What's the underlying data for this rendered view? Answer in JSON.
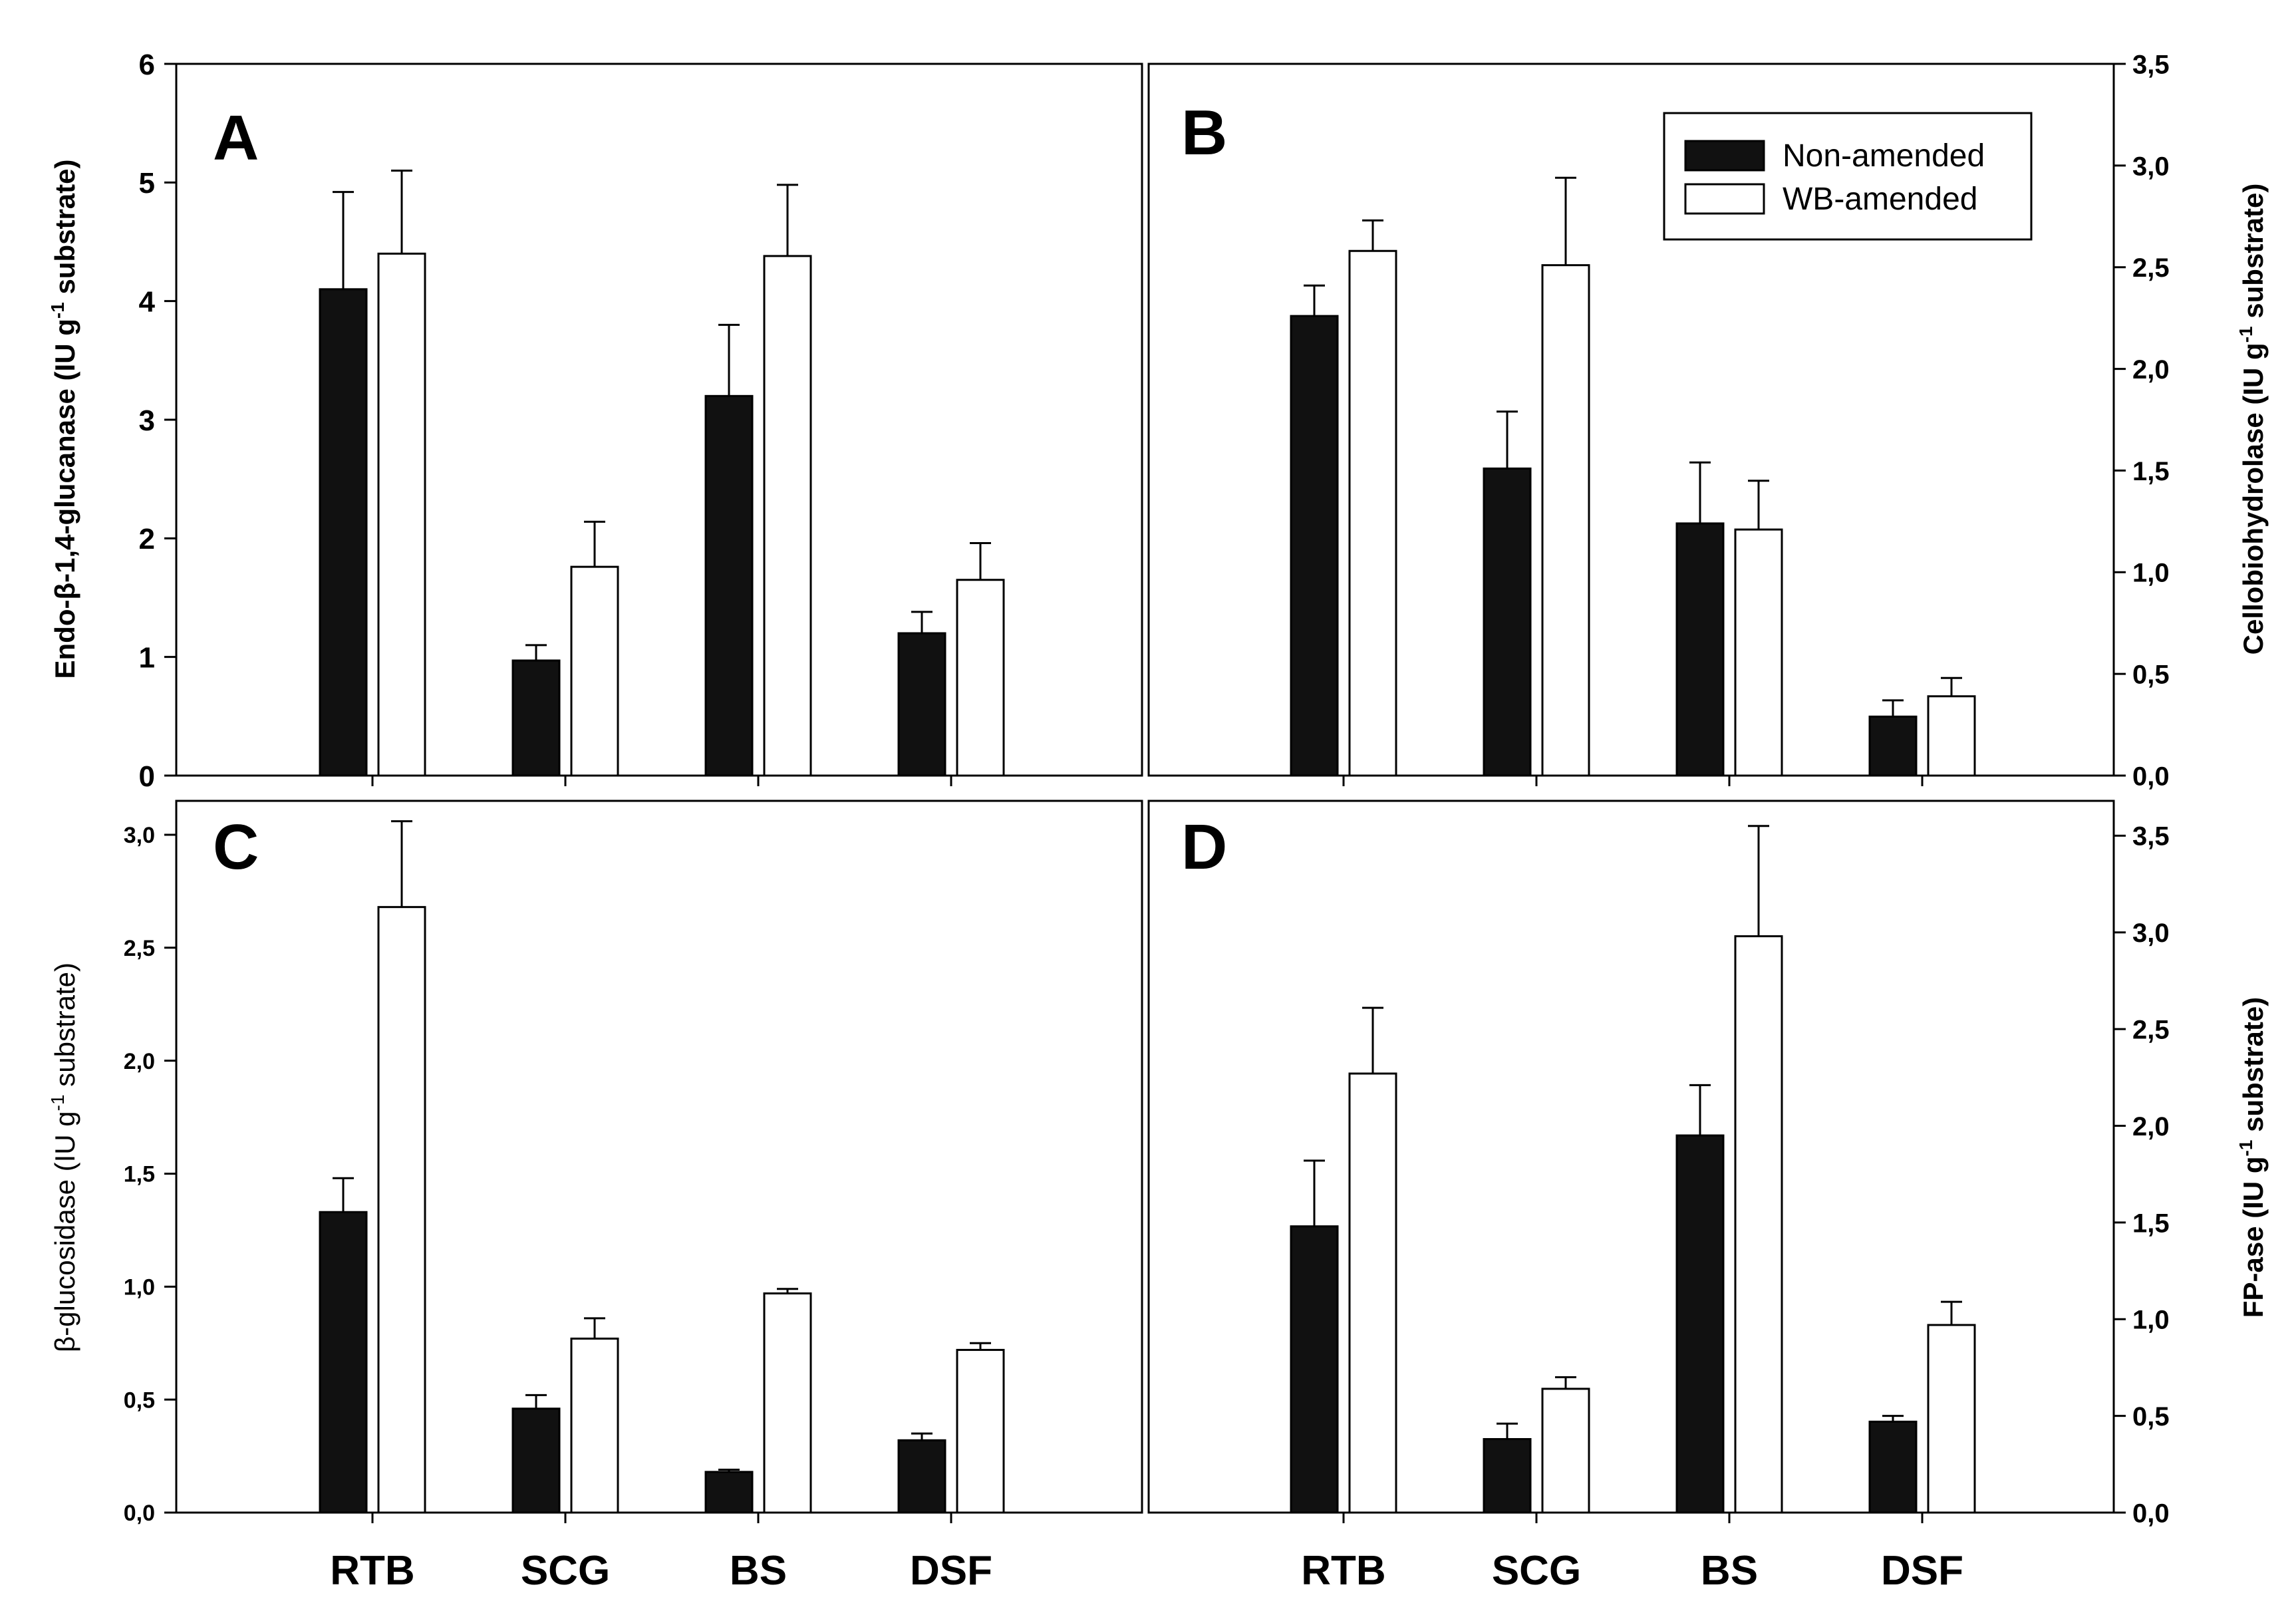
{
  "categories": [
    "RTB",
    "SCG",
    "BS",
    "DSF"
  ],
  "legend": {
    "items": [
      {
        "label": "Non-amended",
        "color": "#111111"
      },
      {
        "label": "WB-amended",
        "color": "#ffffff"
      }
    ]
  },
  "chart_data": [
    {
      "type": "bar",
      "panel": "A",
      "categories": [
        "RTB",
        "SCG",
        "BS",
        "DSF"
      ],
      "series": [
        {
          "name": "Non-amended",
          "values": [
            4.1,
            0.97,
            3.2,
            1.2
          ],
          "errors": [
            0.82,
            0.13,
            0.6,
            0.18
          ]
        },
        {
          "name": "WB-amended",
          "values": [
            4.4,
            1.76,
            4.38,
            1.65
          ],
          "errors": [
            0.7,
            0.38,
            0.6,
            0.31
          ]
        }
      ],
      "ylabel": "Endo-β-1,4-glucanase (IU g-1 substrate)",
      "ylim": [
        0,
        6
      ],
      "yticks": [
        "0",
        "1",
        "2",
        "3",
        "4",
        "5",
        "6"
      ]
    },
    {
      "type": "bar",
      "panel": "B",
      "categories": [
        "RTB",
        "SCG",
        "BS",
        "DSF"
      ],
      "series": [
        {
          "name": "Non-amended",
          "values": [
            2.26,
            1.51,
            1.24,
            0.29
          ],
          "errors": [
            0.15,
            0.28,
            0.3,
            0.08
          ]
        },
        {
          "name": "WB-amended",
          "values": [
            2.58,
            2.51,
            1.21,
            0.39
          ],
          "errors": [
            0.15,
            0.43,
            0.24,
            0.09
          ]
        }
      ],
      "ylabel": "Cellobiohydrolase (IU g-1 substrate)",
      "ylim": [
        0,
        3.5
      ],
      "yticks": [
        "0,0",
        "0,5",
        "1,0",
        "1,5",
        "2,0",
        "2,5",
        "3,0",
        "3,5"
      ]
    },
    {
      "type": "bar",
      "panel": "C",
      "categories": [
        "RTB",
        "SCG",
        "BS",
        "DSF"
      ],
      "series": [
        {
          "name": "Non-amended",
          "values": [
            1.33,
            0.46,
            0.18,
            0.32
          ],
          "errors": [
            0.15,
            0.06,
            0.01,
            0.03
          ]
        },
        {
          "name": "WB-amended",
          "values": [
            2.68,
            0.77,
            0.97,
            0.72
          ],
          "errors": [
            0.38,
            0.09,
            0.02,
            0.03
          ]
        }
      ],
      "ylabel": "β-glucosidase (IU g-1 substrate)",
      "ylim": [
        0,
        3.15
      ],
      "yticks": [
        "0,0",
        "0,5",
        "1,0",
        "1,5",
        "2,0",
        "2,5",
        "3,0"
      ]
    },
    {
      "type": "bar",
      "panel": "D",
      "categories": [
        "RTB",
        "SCG",
        "BS",
        "DSF"
      ],
      "series": [
        {
          "name": "Non-amended",
          "values": [
            1.48,
            0.38,
            1.95,
            0.47
          ],
          "errors": [
            0.34,
            0.08,
            0.26,
            0.03
          ]
        },
        {
          "name": "WB-amended",
          "values": [
            2.27,
            0.64,
            2.98,
            0.97
          ],
          "errors": [
            0.34,
            0.06,
            0.57,
            0.12
          ]
        }
      ],
      "ylabel": "FP-ase (IU g-1 substrate)",
      "ylim": [
        0,
        3.68
      ],
      "yticks": [
        "0,0",
        "0,5",
        "1,0",
        "1,5",
        "2,0",
        "2,5",
        "3,0",
        "3,5"
      ]
    }
  ],
  "text": {
    "panel_a": "A",
    "panel_b": "B",
    "panel_c": "C",
    "panel_d": "D",
    "ylabel_a_main": "Endo-β-1,4-glucanase (IU g",
    "ylabel_b_main": "Cellobiohydrolase (IU g",
    "ylabel_c_main": "β-glucosidase (IU g",
    "ylabel_d_main": "FP-ase (IU g",
    "ylabel_sup": "-1",
    "ylabel_tail": " substrate)"
  }
}
